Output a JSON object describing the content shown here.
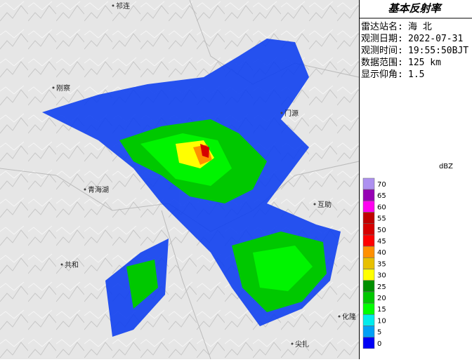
{
  "header": {
    "title": "基本反射率"
  },
  "info": [
    {
      "label": "雷达站名:",
      "value": "海 北"
    },
    {
      "label": "观测日期:",
      "value": "2022-07-31"
    },
    {
      "label": "观测时间:",
      "value": "19:55:50BJT"
    },
    {
      "label": "数据范围:",
      "value": "125 km"
    },
    {
      "label": "显示仰角:",
      "value": "1.5"
    }
  ],
  "legend": {
    "unit": "dBZ",
    "levels": [
      {
        "value": 70,
        "color": "#ad90f0"
      },
      {
        "value": 65,
        "color": "#9600b4"
      },
      {
        "value": 60,
        "color": "#ff00f0"
      },
      {
        "value": 55,
        "color": "#c00000"
      },
      {
        "value": 50,
        "color": "#d60000"
      },
      {
        "value": 45,
        "color": "#ff0000"
      },
      {
        "value": 40,
        "color": "#ff9000"
      },
      {
        "value": 35,
        "color": "#e7c000"
      },
      {
        "value": 30,
        "color": "#ffff00"
      },
      {
        "value": 25,
        "color": "#009000"
      },
      {
        "value": 20,
        "color": "#00c800"
      },
      {
        "value": 15,
        "color": "#00ff00"
      },
      {
        "value": 10,
        "color": "#00ecec"
      },
      {
        "value": 5,
        "color": "#01a0f6"
      },
      {
        "value": 0,
        "color": "#0000f6"
      }
    ]
  },
  "places": [
    "祁连",
    "刚察",
    "门源",
    "青海湖",
    "互助",
    "共和",
    "化隆",
    "尖扎"
  ]
}
